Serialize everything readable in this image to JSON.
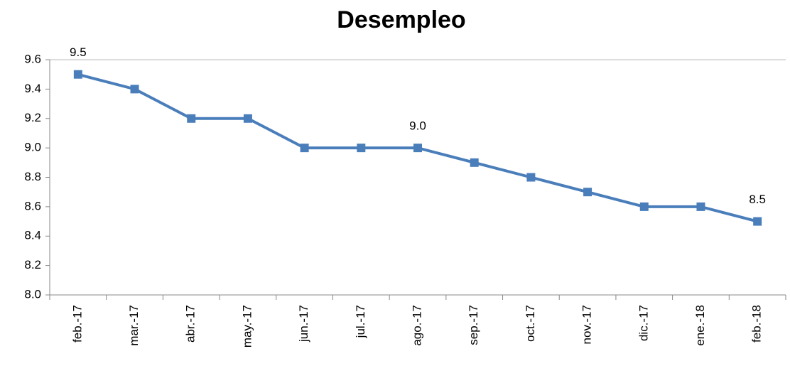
{
  "chart_data": {
    "type": "line",
    "title": "Desempleo",
    "categories": [
      "feb.-17",
      "mar.-17",
      "abr.-17",
      "may.-17",
      "jun.-17",
      "jul.-17",
      "ago.-17",
      "sep.-17",
      "oct.-17",
      "nov.-17",
      "dic.-17",
      "ene.-18",
      "feb.-18"
    ],
    "values": [
      9.5,
      9.4,
      9.2,
      9.2,
      9.0,
      9.0,
      9.0,
      8.9,
      8.8,
      8.7,
      8.6,
      8.6,
      8.5
    ],
    "value_labels": [
      "9.5",
      null,
      null,
      null,
      null,
      null,
      "9.0",
      null,
      null,
      null,
      null,
      null,
      "8.5"
    ],
    "color": "#4a7ebb",
    "ylim": [
      8.0,
      9.6
    ],
    "yticks": [
      {
        "value": 8.0,
        "label": "8.0"
      },
      8.2,
      8.4,
      8.6,
      8.8,
      {
        "value": 9.0,
        "label": "9.0"
      },
      9.2,
      9.4,
      9.6
    ],
    "grid": false
  }
}
